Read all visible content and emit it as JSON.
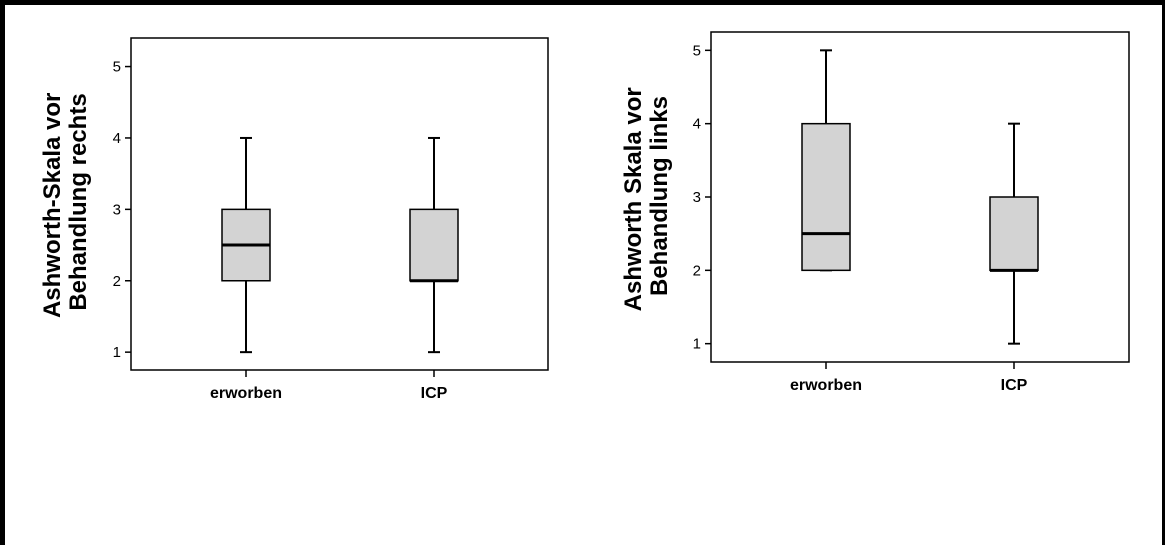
{
  "chart_data": [
    {
      "type": "box",
      "ylabel_lines": [
        "Ashworth-Skala vor",
        "Behandlung rechts"
      ],
      "categories": [
        "erworben",
        "ICP"
      ],
      "yticks": [
        1,
        2,
        3,
        4,
        5
      ],
      "ylim": [
        0.75,
        5.4
      ],
      "boxes": [
        {
          "category": "erworben",
          "min": 1,
          "q1": 2,
          "median": 2.5,
          "q3": 3,
          "max": 4
        },
        {
          "category": "ICP",
          "min": 1,
          "q1": 2,
          "median": 2,
          "q3": 3,
          "max": 4
        }
      ],
      "colors": {
        "box_fill": "#d3d3d3",
        "line": "#000000"
      }
    },
    {
      "type": "box",
      "ylabel_lines": [
        "Ashworth Skala vor",
        "Behandlung links"
      ],
      "categories": [
        "erworben",
        "ICP"
      ],
      "yticks": [
        1,
        2,
        3,
        4,
        5
      ],
      "ylim": [
        0.75,
        5.25
      ],
      "boxes": [
        {
          "category": "erworben",
          "min": 2,
          "q1": 2,
          "median": 2.5,
          "q3": 4,
          "max": 5
        },
        {
          "category": "ICP",
          "min": 1,
          "q1": 2,
          "median": 2,
          "q3": 3,
          "max": 4
        }
      ],
      "colors": {
        "box_fill": "#d3d3d3",
        "line": "#000000"
      }
    }
  ]
}
